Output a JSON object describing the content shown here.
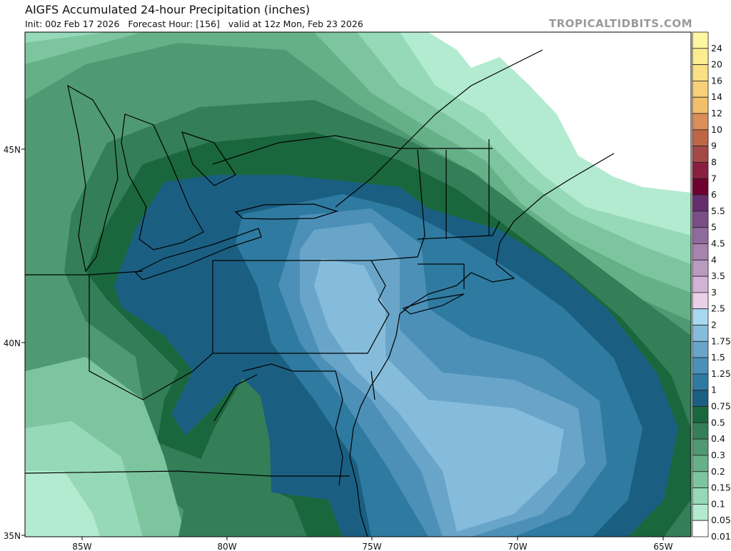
{
  "header": {
    "title": "AIGFS Accumulated 24-hour Precipitation (inches)",
    "subtitle": "Init: 00z Feb 17 2026   Forecast Hour: [156]   valid at 12z Mon, Feb 23 2026",
    "brand": "TROPICALTIDBITS.COM"
  },
  "map": {
    "longitude_labels": [
      "85W",
      "80W",
      "75W",
      "70W",
      "65W"
    ],
    "latitude_labels": [
      "45N",
      "40N",
      "35N"
    ]
  },
  "colorbar": {
    "labels": [
      "24",
      "20",
      "16",
      "14",
      "12",
      "10",
      "9",
      "8",
      "7",
      "6",
      "5.5",
      "5",
      "4.5",
      "4",
      "3.5",
      "3",
      "2.5",
      "2",
      "1.75",
      "1.5",
      "1.25",
      "1",
      "0.75",
      "0.5",
      "0.4",
      "0.3",
      "0.2",
      "0.15",
      "0.1",
      "0.05",
      "0.01"
    ],
    "colors": [
      "#fff6a0",
      "#fdec90",
      "#fbe084",
      "#f8d078",
      "#f3c06a",
      "#dc8e58",
      "#bf6646",
      "#a54848",
      "#8a2040",
      "#6e0030",
      "#662e6c",
      "#7a4e86",
      "#8f6a9c",
      "#a783ad",
      "#b99bc0",
      "#d2b3d4",
      "#e9d0e6",
      "#a8d8f0",
      "#86bcdb",
      "#68a5c9",
      "#4c90b8",
      "#2f7aa0",
      "#1a5f82",
      "#1a673d",
      "#347f57",
      "#4f9a72",
      "#66b088",
      "#7cc59e",
      "#96d9b8",
      "#b3ebd0",
      "#ffffff"
    ]
  }
}
